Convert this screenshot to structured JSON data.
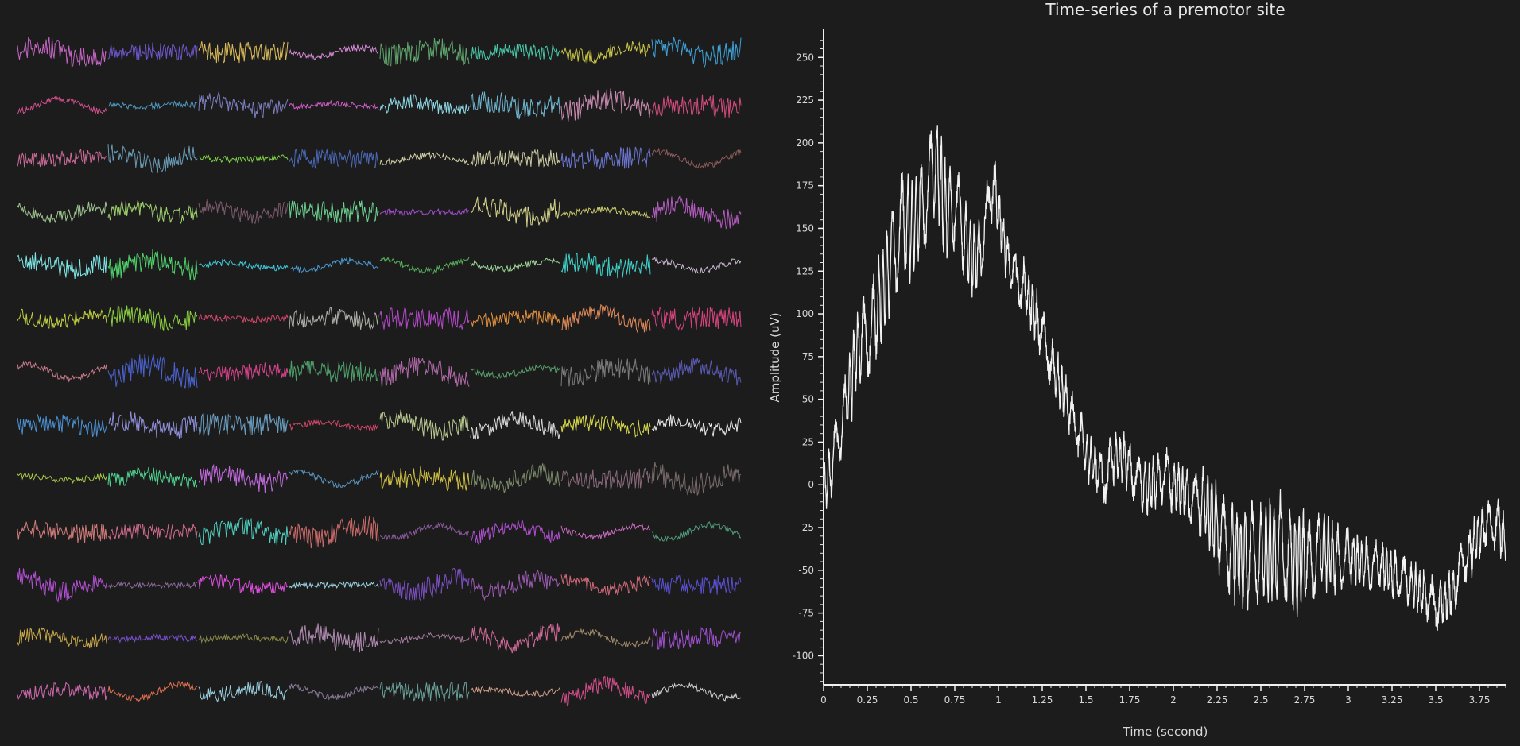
{
  "window": {
    "background": "#1c1c1c"
  },
  "site_grid": {
    "rows": 13,
    "cols": 8,
    "interactive": true,
    "palette": [
      "#c465c4",
      "#6f56c9",
      "#d9b95a",
      "#d388d4",
      "#5fa36d",
      "#47c9a8",
      "#c9c545",
      "#3fa1d6",
      "#d04f8d",
      "#4f97c1",
      "#7c7fbf",
      "#d25ec9",
      "#8fd8e5",
      "#6fb5cf",
      "#c98bb0",
      "#d34c7d",
      "#c96a96",
      "#6a9bb5",
      "#7fd046",
      "#4a68b5",
      "#d2d2a8",
      "#c9c9a0",
      "#6c76d0",
      "#8d5a5a",
      "#9ec28f",
      "#9ccf6c",
      "#7a5a6a",
      "#6dd18f",
      "#a14ed0",
      "#d2d08a",
      "#c9c96d",
      "#b45cc0",
      "#7fe5e5",
      "#4fd06a",
      "#3fc7d6",
      "#4b9ad1",
      "#55b05a",
      "#9ed89a",
      "#3fd0c9",
      "#c9b8d0",
      "#bfcc3f",
      "#8bd03f",
      "#d2476b",
      "#b0b0a8",
      "#b548c9",
      "#e08f3f",
      "#e08a5a",
      "#d6447e",
      "#c97a8a",
      "#4b63d1",
      "#d6448c",
      "#4fa06a",
      "#b06aa8",
      "#5aa06a",
      "#7a7a7a",
      "#5a5ab5",
      "#4b90d1",
      "#8f8fd8",
      "#6a9ec0",
      "#d2476b",
      "#b8c98f",
      "#d8d8d8",
      "#d8d84a",
      "#e8e8e8",
      "#a8c94a",
      "#4fd08f",
      "#c36ae0",
      "#5a96c0",
      "#d0c03f",
      "#7a8a6a",
      "#8a6a7a",
      "#7a6a6a",
      "#d07a7a",
      "#d06a8a",
      "#4fd0c0",
      "#c96a6a",
      "#8a5a9a",
      "#b04fd0",
      "#c96ac0",
      "#4f9a7a",
      "#b04fd0",
      "#8a6a9a",
      "#e04fe0",
      "#9ad0e0",
      "#7a4fc0",
      "#9a5ab0",
      "#d06a7a",
      "#5a4fd0",
      "#c9a84a",
      "#7a4fd0",
      "#8a8a4a",
      "#b08ab0",
      "#a07a9a",
      "#d06a9a",
      "#a08a6a",
      "#a04fd0",
      "#d06ab0",
      "#e0704f",
      "#9ad0e0",
      "#8a7a9a",
      "#6aa09a",
      "#d0a08a",
      "#d04f8a",
      "#d0d0d0"
    ]
  },
  "chart_data": {
    "type": "line",
    "title": "Time-series of a premotor site",
    "xlabel": "Time (second)",
    "ylabel": "Amplitude (uV)",
    "xlim": [
      0,
      3.9
    ],
    "ylim": [
      -117,
      265
    ],
    "x_ticks": [
      "0",
      "0.25",
      "0.5",
      "0.75",
      "1",
      "1.25",
      "1.5",
      "1.75",
      "2",
      "2.25",
      "2.5",
      "2.75",
      "3",
      "3.25",
      "3.5",
      "3.75"
    ],
    "y_ticks": [
      "250",
      "225",
      "200",
      "175",
      "150",
      "125",
      "100",
      "75",
      "50",
      "25",
      "0",
      "-25",
      "-50",
      "-75",
      "-100"
    ],
    "x_tick_values": [
      0,
      0.25,
      0.5,
      0.75,
      1,
      1.25,
      1.5,
      1.75,
      2,
      2.25,
      2.5,
      2.75,
      3,
      3.25,
      3.5,
      3.75
    ],
    "y_tick_values": [
      250,
      225,
      200,
      175,
      150,
      125,
      100,
      75,
      50,
      25,
      0,
      -25,
      -50,
      -75,
      -100
    ],
    "line_color": "#f2f2f2",
    "grid": false,
    "series": [
      {
        "x": [
          0,
          0.05,
          0.1,
          0.15,
          0.2,
          0.25,
          0.3,
          0.35,
          0.4,
          0.45,
          0.5,
          0.55,
          0.6,
          0.64,
          0.7,
          0.75,
          0.8,
          0.85,
          0.9,
          0.97,
          1.0,
          1.05,
          1.1,
          1.15,
          1.2,
          1.25,
          1.3,
          1.35,
          1.4,
          1.45,
          1.5,
          1.55,
          1.6,
          1.65,
          1.7,
          1.75,
          1.8,
          1.85,
          1.9,
          1.95,
          2.0,
          2.05,
          2.1,
          2.15,
          2.2,
          2.25,
          2.3,
          2.35,
          2.4,
          2.45,
          2.5,
          2.55,
          2.6,
          2.65,
          2.7,
          2.75,
          2.8,
          2.85,
          2.9,
          2.95,
          3.0,
          3.05,
          3.1,
          3.15,
          3.2,
          3.25,
          3.3,
          3.35,
          3.4,
          3.45,
          3.5,
          3.55,
          3.6,
          3.65,
          3.7,
          3.75,
          3.8,
          3.85,
          3.9
        ],
        "y": [
          -5,
          12,
          35,
          58,
          82,
          88,
          100,
          118,
          138,
          152,
          150,
          162,
          172,
          190,
          158,
          164,
          148,
          132,
          138,
          178,
          160,
          132,
          120,
          116,
          102,
          88,
          72,
          58,
          44,
          34,
          20,
          10,
          2,
          14,
          18,
          10,
          2,
          -2,
          2,
          6,
          0,
          -4,
          -8,
          -10,
          -14,
          -24,
          -34,
          -40,
          -44,
          -40,
          -42,
          -38,
          -36,
          -40,
          -46,
          -44,
          -42,
          -36,
          -40,
          -44,
          -42,
          -44,
          -46,
          -48,
          -46,
          -52,
          -55,
          -58,
          -62,
          -64,
          -72,
          -70,
          -62,
          -48,
          -38,
          -28,
          -24,
          -22,
          -32
        ]
      }
    ]
  }
}
